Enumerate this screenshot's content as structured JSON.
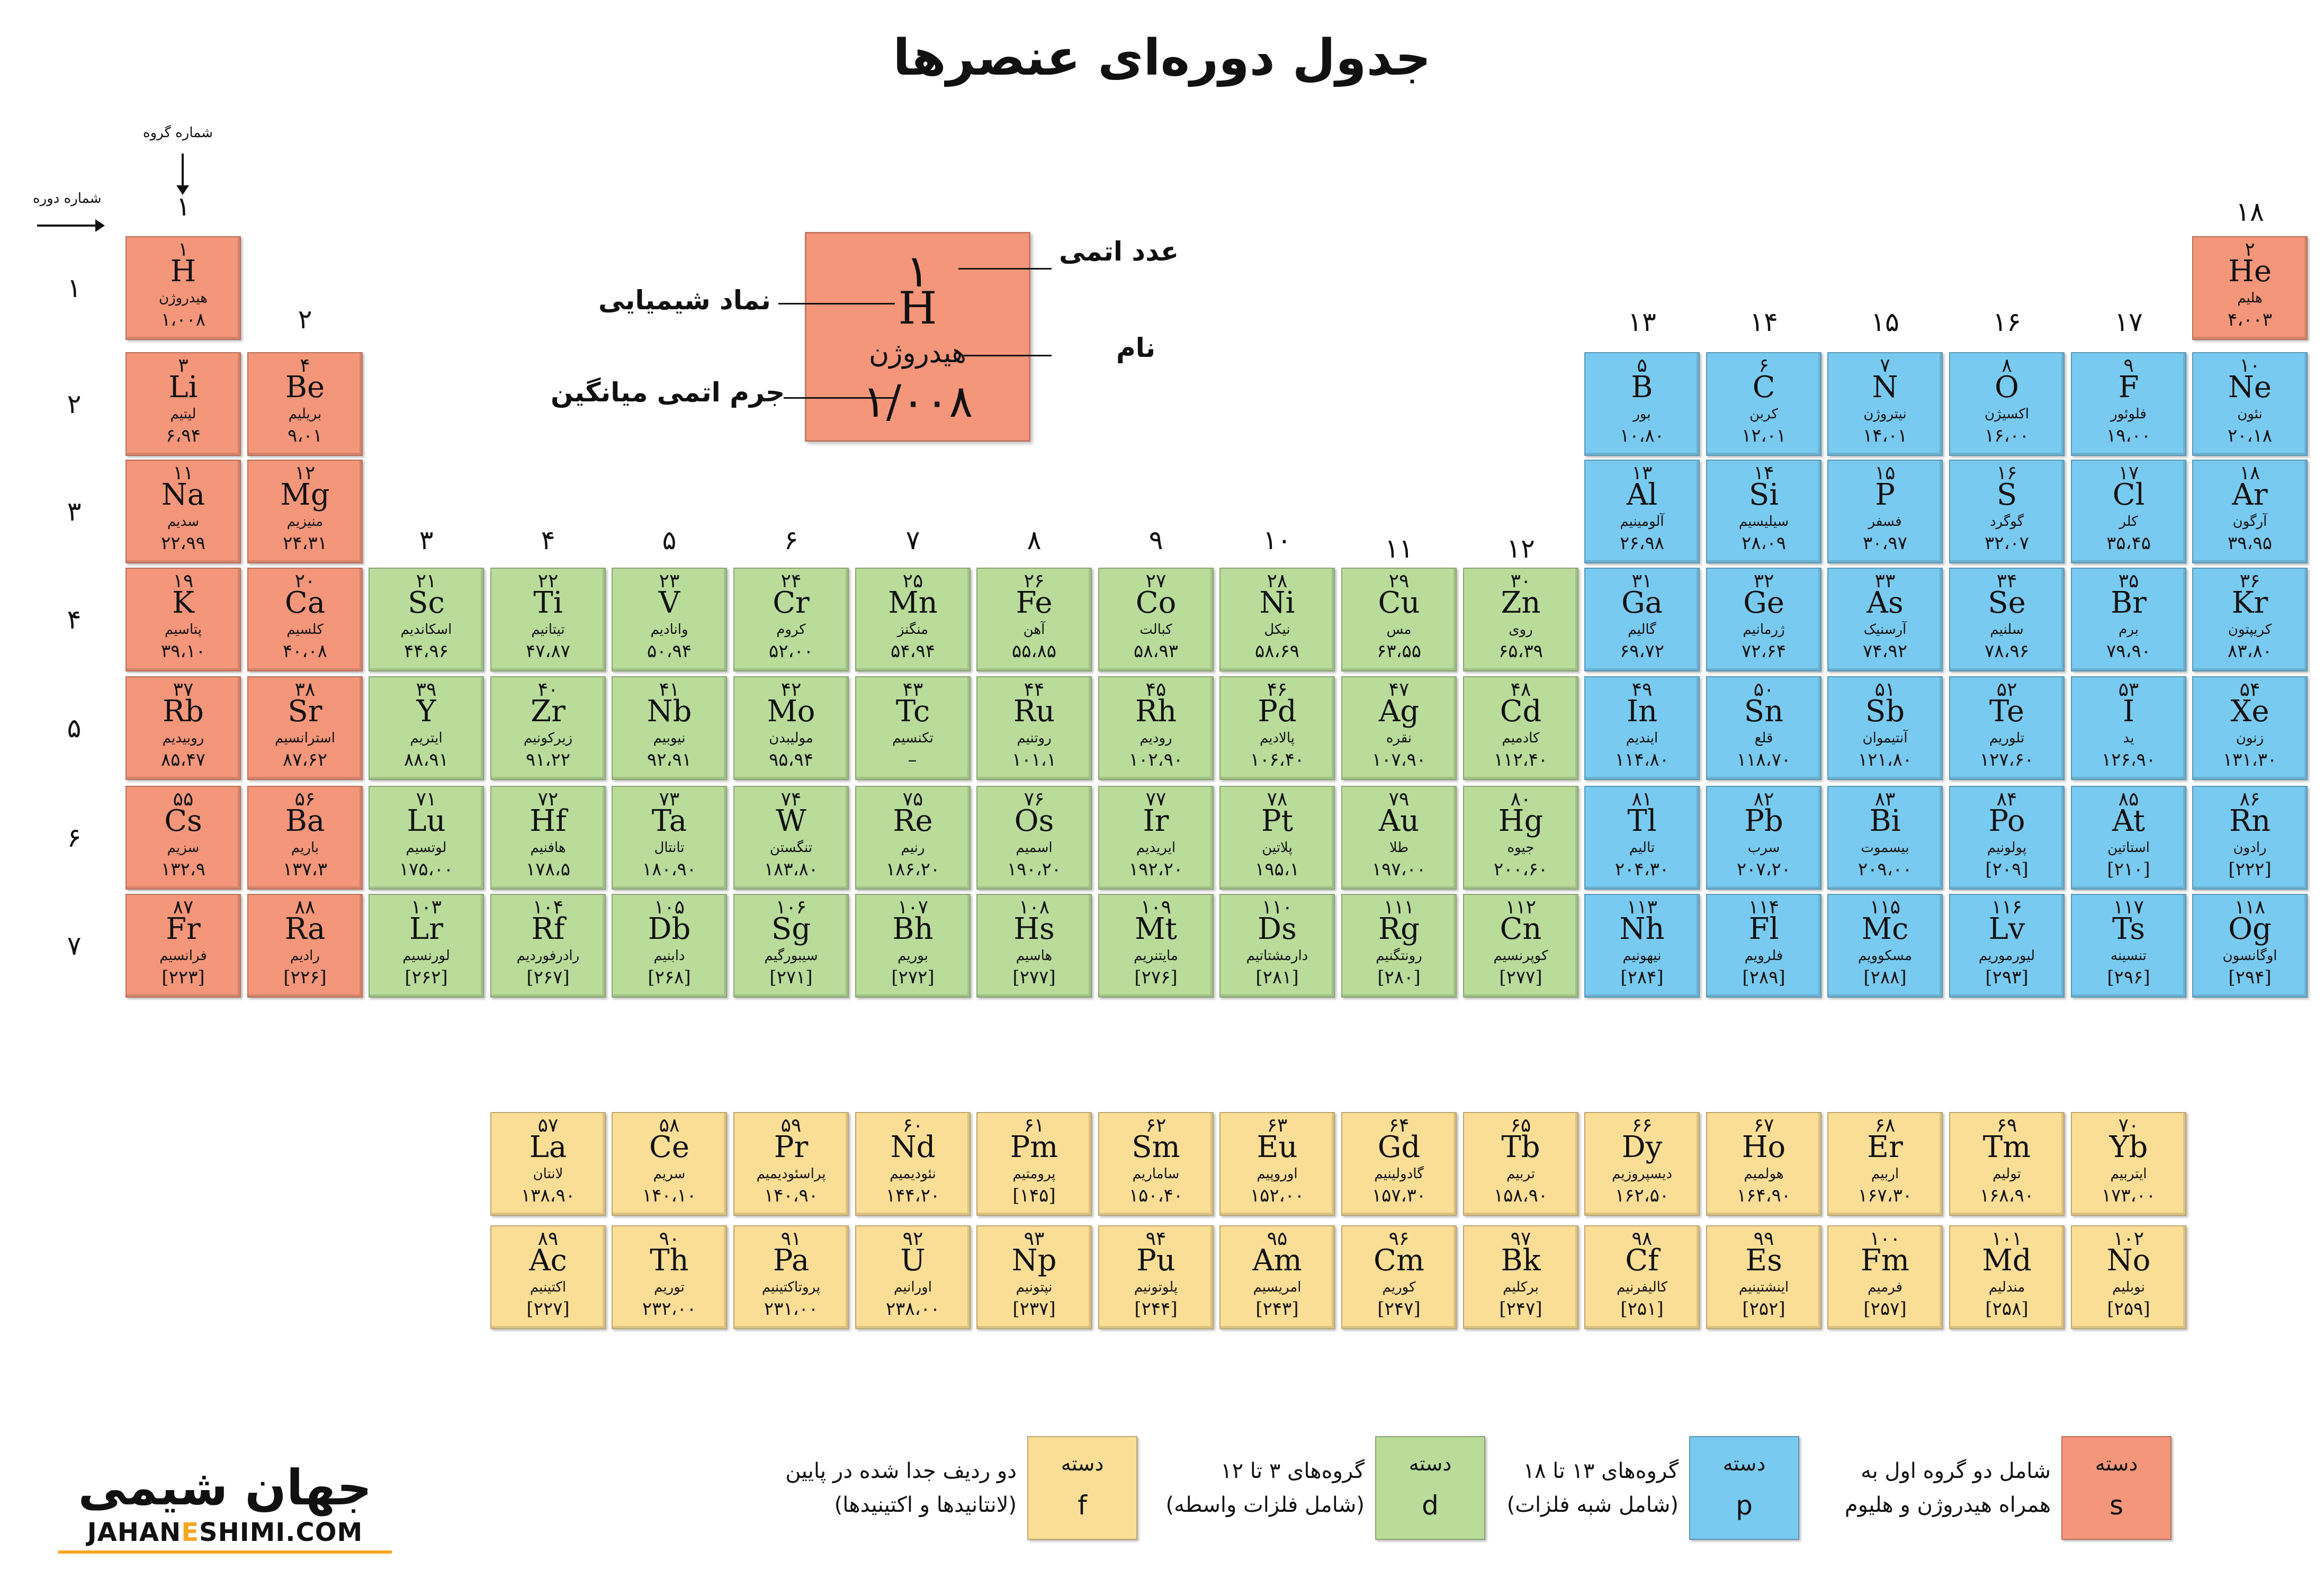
{
  "title": "جدول دوره‌ای عنصرها",
  "axis_labels": {
    "group": "شماره گروه",
    "period": "شماره دوره"
  },
  "group_numbers": [
    "۱",
    "۲",
    "۳",
    "۴",
    "۵",
    "۶",
    "۷",
    "۸",
    "۹",
    "۱۰",
    "۱۱",
    "۱۲",
    "۱۳",
    "۱۴",
    "۱۵",
    "۱۶",
    "۱۷",
    "۱۸"
  ],
  "period_numbers": [
    "۱",
    "۲",
    "۳",
    "۴",
    "۵",
    "۶",
    "۷"
  ],
  "sample": {
    "number": "۱",
    "symbol": "H",
    "name": "هیدروژن",
    "mass": "۱/۰۰۸",
    "labels": {
      "number": "عدد اتمی",
      "symbol": "نماد شیمیایی",
      "name": "نام",
      "mass": "جرم اتمی میانگین"
    }
  },
  "elements": [
    {
      "n": "۱",
      "s": "H",
      "nm": "هیدروژن",
      "m": "۱،۰۰۸",
      "b": "s",
      "c": 1,
      "r": 1
    },
    {
      "n": "۲",
      "s": "He",
      "nm": "هلیم",
      "m": "۴،۰۰۳",
      "b": "s",
      "c": 18,
      "r": 1
    },
    {
      "n": "۳",
      "s": "Li",
      "nm": "لیتیم",
      "m": "۶،۹۴",
      "b": "s",
      "c": 1,
      "r": 2
    },
    {
      "n": "۴",
      "s": "Be",
      "nm": "بریلیم",
      "m": "۹،۰۱",
      "b": "s",
      "c": 2,
      "r": 2
    },
    {
      "n": "۵",
      "s": "B",
      "nm": "بور",
      "m": "۱۰،۸۰",
      "b": "p",
      "c": 13,
      "r": 2
    },
    {
      "n": "۶",
      "s": "C",
      "nm": "کربن",
      "m": "۱۲،۰۱",
      "b": "p",
      "c": 14,
      "r": 2
    },
    {
      "n": "۷",
      "s": "N",
      "nm": "نیتروژن",
      "m": "۱۴،۰۱",
      "b": "p",
      "c": 15,
      "r": 2
    },
    {
      "n": "۸",
      "s": "O",
      "nm": "اکسیژن",
      "m": "۱۶،۰۰",
      "b": "p",
      "c": 16,
      "r": 2
    },
    {
      "n": "۹",
      "s": "F",
      "nm": "فلوئور",
      "m": "۱۹،۰۰",
      "b": "p",
      "c": 17,
      "r": 2
    },
    {
      "n": "۱۰",
      "s": "Ne",
      "nm": "نئون",
      "m": "۲۰،۱۸",
      "b": "p",
      "c": 18,
      "r": 2
    },
    {
      "n": "۱۱",
      "s": "Na",
      "nm": "سدیم",
      "m": "۲۲،۹۹",
      "b": "s",
      "c": 1,
      "r": 3
    },
    {
      "n": "۱۲",
      "s": "Mg",
      "nm": "منیزیم",
      "m": "۲۴،۳۱",
      "b": "s",
      "c": 2,
      "r": 3
    },
    {
      "n": "۱۳",
      "s": "Al",
      "nm": "آلومینیم",
      "m": "۲۶،۹۸",
      "b": "p",
      "c": 13,
      "r": 3
    },
    {
      "n": "۱۴",
      "s": "Si",
      "nm": "سیلیسیم",
      "m": "۲۸،۰۹",
      "b": "p",
      "c": 14,
      "r": 3
    },
    {
      "n": "۱۵",
      "s": "P",
      "nm": "فسفر",
      "m": "۳۰،۹۷",
      "b": "p",
      "c": 15,
      "r": 3
    },
    {
      "n": "۱۶",
      "s": "S",
      "nm": "گوگرد",
      "m": "۳۲،۰۷",
      "b": "p",
      "c": 16,
      "r": 3
    },
    {
      "n": "۱۷",
      "s": "Cl",
      "nm": "کلر",
      "m": "۳۵،۴۵",
      "b": "p",
      "c": 17,
      "r": 3
    },
    {
      "n": "۱۸",
      "s": "Ar",
      "nm": "آرگون",
      "m": "۳۹،۹۵",
      "b": "p",
      "c": 18,
      "r": 3
    },
    {
      "n": "۱۹",
      "s": "K",
      "nm": "پتاسیم",
      "m": "۳۹،۱۰",
      "b": "s",
      "c": 1,
      "r": 4
    },
    {
      "n": "۲۰",
      "s": "Ca",
      "nm": "کلسیم",
      "m": "۴۰،۰۸",
      "b": "s",
      "c": 2,
      "r": 4
    },
    {
      "n": "۲۱",
      "s": "Sc",
      "nm": "اسکاندیم",
      "m": "۴۴،۹۶",
      "b": "d",
      "c": 3,
      "r": 4
    },
    {
      "n": "۲۲",
      "s": "Ti",
      "nm": "تیتانیم",
      "m": "۴۷،۸۷",
      "b": "d",
      "c": 4,
      "r": 4
    },
    {
      "n": "۲۳",
      "s": "V",
      "nm": "وانادیم",
      "m": "۵۰،۹۴",
      "b": "d",
      "c": 5,
      "r": 4
    },
    {
      "n": "۲۴",
      "s": "Cr",
      "nm": "کروم",
      "m": "۵۲،۰۰",
      "b": "d",
      "c": 6,
      "r": 4
    },
    {
      "n": "۲۵",
      "s": "Mn",
      "nm": "منگنز",
      "m": "۵۴،۹۴",
      "b": "d",
      "c": 7,
      "r": 4
    },
    {
      "n": "۲۶",
      "s": "Fe",
      "nm": "آهن",
      "m": "۵۵،۸۵",
      "b": "d",
      "c": 8,
      "r": 4
    },
    {
      "n": "۲۷",
      "s": "Co",
      "nm": "کبالت",
      "m": "۵۸،۹۳",
      "b": "d",
      "c": 9,
      "r": 4
    },
    {
      "n": "۲۸",
      "s": "Ni",
      "nm": "نیکل",
      "m": "۵۸،۶۹",
      "b": "d",
      "c": 10,
      "r": 4
    },
    {
      "n": "۲۹",
      "s": "Cu",
      "nm": "مس",
      "m": "۶۳،۵۵",
      "b": "d",
      "c": 11,
      "r": 4
    },
    {
      "n": "۳۰",
      "s": "Zn",
      "nm": "روی",
      "m": "۶۵،۳۹",
      "b": "d",
      "c": 12,
      "r": 4
    },
    {
      "n": "۳۱",
      "s": "Ga",
      "nm": "گالیم",
      "m": "۶۹،۷۲",
      "b": "p",
      "c": 13,
      "r": 4
    },
    {
      "n": "۳۲",
      "s": "Ge",
      "nm": "ژرمانیم",
      "m": "۷۲،۶۴",
      "b": "p",
      "c": 14,
      "r": 4
    },
    {
      "n": "۳۳",
      "s": "As",
      "nm": "آرسنیک",
      "m": "۷۴،۹۲",
      "b": "p",
      "c": 15,
      "r": 4
    },
    {
      "n": "۳۴",
      "s": "Se",
      "nm": "سلنیم",
      "m": "۷۸،۹۶",
      "b": "p",
      "c": 16,
      "r": 4
    },
    {
      "n": "۳۵",
      "s": "Br",
      "nm": "برم",
      "m": "۷۹،۹۰",
      "b": "p",
      "c": 17,
      "r": 4
    },
    {
      "n": "۳۶",
      "s": "Kr",
      "nm": "کریپتون",
      "m": "۸۳،۸۰",
      "b": "p",
      "c": 18,
      "r": 4
    },
    {
      "n": "۳۷",
      "s": "Rb",
      "nm": "روبیدیم",
      "m": "۸۵،۴۷",
      "b": "s",
      "c": 1,
      "r": 5
    },
    {
      "n": "۳۸",
      "s": "Sr",
      "nm": "استرانسیم",
      "m": "۸۷،۶۲",
      "b": "s",
      "c": 2,
      "r": 5
    },
    {
      "n": "۳۹",
      "s": "Y",
      "nm": "ایتریم",
      "m": "۸۸،۹۱",
      "b": "d",
      "c": 3,
      "r": 5
    },
    {
      "n": "۴۰",
      "s": "Zr",
      "nm": "زیرکونیم",
      "m": "۹۱،۲۲",
      "b": "d",
      "c": 4,
      "r": 5
    },
    {
      "n": "۴۱",
      "s": "Nb",
      "nm": "نیوبیم",
      "m": "۹۲،۹۱",
      "b": "d",
      "c": 5,
      "r": 5
    },
    {
      "n": "۴۲",
      "s": "Mo",
      "nm": "مولیبدن",
      "m": "۹۵،۹۴",
      "b": "d",
      "c": 6,
      "r": 5
    },
    {
      "n": "۴۳",
      "s": "Tc",
      "nm": "تکنسیم",
      "m": "–",
      "b": "d",
      "c": 7,
      "r": 5
    },
    {
      "n": "۴۴",
      "s": "Ru",
      "nm": "روتنیم",
      "m": "۱۰۱،۱",
      "b": "d",
      "c": 8,
      "r": 5
    },
    {
      "n": "۴۵",
      "s": "Rh",
      "nm": "رودیم",
      "m": "۱۰۲،۹۰",
      "b": "d",
      "c": 9,
      "r": 5
    },
    {
      "n": "۴۶",
      "s": "Pd",
      "nm": "پالادیم",
      "m": "۱۰۶،۴۰",
      "b": "d",
      "c": 10,
      "r": 5
    },
    {
      "n": "۴۷",
      "s": "Ag",
      "nm": "نقره",
      "m": "۱۰۷،۹۰",
      "b": "d",
      "c": 11,
      "r": 5
    },
    {
      "n": "۴۸",
      "s": "Cd",
      "nm": "کادمیم",
      "m": "۱۱۲،۴۰",
      "b": "d",
      "c": 12,
      "r": 5
    },
    {
      "n": "۴۹",
      "s": "In",
      "nm": "ایندیم",
      "m": "۱۱۴،۸۰",
      "b": "p",
      "c": 13,
      "r": 5
    },
    {
      "n": "۵۰",
      "s": "Sn",
      "nm": "قلع",
      "m": "۱۱۸،۷۰",
      "b": "p",
      "c": 14,
      "r": 5
    },
    {
      "n": "۵۱",
      "s": "Sb",
      "nm": "آنتیموان",
      "m": "۱۲۱،۸۰",
      "b": "p",
      "c": 15,
      "r": 5
    },
    {
      "n": "۵۲",
      "s": "Te",
      "nm": "تلوریم",
      "m": "۱۲۷،۶۰",
      "b": "p",
      "c": 16,
      "r": 5
    },
    {
      "n": "۵۳",
      "s": "I",
      "nm": "ید",
      "m": "۱۲۶،۹۰",
      "b": "p",
      "c": 17,
      "r": 5
    },
    {
      "n": "۵۴",
      "s": "Xe",
      "nm": "زنون",
      "m": "۱۳۱،۳۰",
      "b": "p",
      "c": 18,
      "r": 5
    },
    {
      "n": "۵۵",
      "s": "Cs",
      "nm": "سزیم",
      "m": "۱۳۲،۹",
      "b": "s",
      "c": 1,
      "r": 6
    },
    {
      "n": "۵۶",
      "s": "Ba",
      "nm": "باریم",
      "m": "۱۳۷،۳",
      "b": "s",
      "c": 2,
      "r": 6
    },
    {
      "n": "۷۱",
      "s": "Lu",
      "nm": "لوتسیم",
      "m": "۱۷۵،۰۰",
      "b": "d",
      "c": 3,
      "r": 6
    },
    {
      "n": "۷۲",
      "s": "Hf",
      "nm": "هافنیم",
      "m": "۱۷۸،۵",
      "b": "d",
      "c": 4,
      "r": 6
    },
    {
      "n": "۷۳",
      "s": "Ta",
      "nm": "تانتال",
      "m": "۱۸۰،۹۰",
      "b": "d",
      "c": 5,
      "r": 6
    },
    {
      "n": "۷۴",
      "s": "W",
      "nm": "تنگستن",
      "m": "۱۸۳،۸۰",
      "b": "d",
      "c": 6,
      "r": 6
    },
    {
      "n": "۷۵",
      "s": "Re",
      "nm": "رنیم",
      "m": "۱۸۶،۲۰",
      "b": "d",
      "c": 7,
      "r": 6
    },
    {
      "n": "۷۶",
      "s": "Os",
      "nm": "اسمیم",
      "m": "۱۹۰،۲۰",
      "b": "d",
      "c": 8,
      "r": 6
    },
    {
      "n": "۷۷",
      "s": "Ir",
      "nm": "ایریدیم",
      "m": "۱۹۲،۲۰",
      "b": "d",
      "c": 9,
      "r": 6
    },
    {
      "n": "۷۸",
      "s": "Pt",
      "nm": "پلاتین",
      "m": "۱۹۵،۱",
      "b": "d",
      "c": 10,
      "r": 6
    },
    {
      "n": "۷۹",
      "s": "Au",
      "nm": "طلا",
      "m": "۱۹۷،۰۰",
      "b": "d",
      "c": 11,
      "r": 6
    },
    {
      "n": "۸۰",
      "s": "Hg",
      "nm": "جیوه",
      "m": "۲۰۰،۶۰",
      "b": "d",
      "c": 12,
      "r": 6
    },
    {
      "n": "۸۱",
      "s": "Tl",
      "nm": "تالیم",
      "m": "۲۰۴،۳۰",
      "b": "p",
      "c": 13,
      "r": 6
    },
    {
      "n": "۸۲",
      "s": "Pb",
      "nm": "سرب",
      "m": "۲۰۷،۲۰",
      "b": "p",
      "c": 14,
      "r": 6
    },
    {
      "n": "۸۳",
      "s": "Bi",
      "nm": "بیسموت",
      "m": "۲۰۹،۰۰",
      "b": "p",
      "c": 15,
      "r": 6
    },
    {
      "n": "۸۴",
      "s": "Po",
      "nm": "پولونیم",
      "m": "[۲۰۹]",
      "b": "p",
      "c": 16,
      "r": 6
    },
    {
      "n": "۸۵",
      "s": "At",
      "nm": "استاتین",
      "m": "[۲۱۰]",
      "b": "p",
      "c": 17,
      "r": 6
    },
    {
      "n": "۸۶",
      "s": "Rn",
      "nm": "رادون",
      "m": "[۲۲۲]",
      "b": "p",
      "c": 18,
      "r": 6
    },
    {
      "n": "۸۷",
      "s": "Fr",
      "nm": "فرانسیم",
      "m": "[۲۲۳]",
      "b": "s",
      "c": 1,
      "r": 7
    },
    {
      "n": "۸۸",
      "s": "Ra",
      "nm": "رادیم",
      "m": "[۲۲۶]",
      "b": "s",
      "c": 2,
      "r": 7
    },
    {
      "n": "۱۰۳",
      "s": "Lr",
      "nm": "لورنسیم",
      "m": "[۲۶۲]",
      "b": "d",
      "c": 3,
      "r": 7
    },
    {
      "n": "۱۰۴",
      "s": "Rf",
      "nm": "رادرفوردیم",
      "m": "[۲۶۷]",
      "b": "d",
      "c": 4,
      "r": 7
    },
    {
      "n": "۱۰۵",
      "s": "Db",
      "nm": "دابنیم",
      "m": "[۲۶۸]",
      "b": "d",
      "c": 5,
      "r": 7
    },
    {
      "n": "۱۰۶",
      "s": "Sg",
      "nm": "سیبورگیم",
      "m": "[۲۷۱]",
      "b": "d",
      "c": 6,
      "r": 7
    },
    {
      "n": "۱۰۷",
      "s": "Bh",
      "nm": "بوریم",
      "m": "[۲۷۲]",
      "b": "d",
      "c": 7,
      "r": 7
    },
    {
      "n": "۱۰۸",
      "s": "Hs",
      "nm": "هاسیم",
      "m": "[۲۷۷]",
      "b": "d",
      "c": 8,
      "r": 7
    },
    {
      "n": "۱۰۹",
      "s": "Mt",
      "nm": "مایتنریم",
      "m": "[۲۷۶]",
      "b": "d",
      "c": 9,
      "r": 7
    },
    {
      "n": "۱۱۰",
      "s": "Ds",
      "nm": "دارمشتاتیم",
      "m": "[۲۸۱]",
      "b": "d",
      "c": 10,
      "r": 7
    },
    {
      "n": "۱۱۱",
      "s": "Rg",
      "nm": "رونتگنیم",
      "m": "[۲۸۰]",
      "b": "d",
      "c": 11,
      "r": 7
    },
    {
      "n": "۱۱۲",
      "s": "Cn",
      "nm": "کوپرنسیم",
      "m": "[۲۷۷]",
      "b": "d",
      "c": 12,
      "r": 7
    },
    {
      "n": "۱۱۳",
      "s": "Nh",
      "nm": "نیهونیم",
      "m": "[۲۸۴]",
      "b": "p",
      "c": 13,
      "r": 7
    },
    {
      "n": "۱۱۴",
      "s": "Fl",
      "nm": "فلرویم",
      "m": "[۲۸۹]",
      "b": "p",
      "c": 14,
      "r": 7
    },
    {
      "n": "۱۱۵",
      "s": "Mc",
      "nm": "مسکوویم",
      "m": "[۲۸۸]",
      "b": "p",
      "c": 15,
      "r": 7
    },
    {
      "n": "۱۱۶",
      "s": "Lv",
      "nm": "لیورموریم",
      "m": "[۲۹۳]",
      "b": "p",
      "c": 16,
      "r": 7
    },
    {
      "n": "۱۱۷",
      "s": "Ts",
      "nm": "تنسینه",
      "m": "[۲۹۶]",
      "b": "p",
      "c": 17,
      "r": 7
    },
    {
      "n": "۱۱۸",
      "s": "Og",
      "nm": "اوگانسون",
      "m": "[۲۹۴]",
      "b": "p",
      "c": 18,
      "r": 7
    },
    {
      "n": "۵۷",
      "s": "La",
      "nm": "لانتان",
      "m": "۱۳۸،۹۰",
      "b": "f",
      "c": 4,
      "r": 8
    },
    {
      "n": "۵۸",
      "s": "Ce",
      "nm": "سریم",
      "m": "۱۴۰،۱۰",
      "b": "f",
      "c": 5,
      "r": 8
    },
    {
      "n": "۵۹",
      "s": "Pr",
      "nm": "پراسئودیمیم",
      "m": "۱۴۰،۹۰",
      "b": "f",
      "c": 6,
      "r": 8
    },
    {
      "n": "۶۰",
      "s": "Nd",
      "nm": "نئودیمیم",
      "m": "۱۴۴،۲۰",
      "b": "f",
      "c": 7,
      "r": 8
    },
    {
      "n": "۶۱",
      "s": "Pm",
      "nm": "پرومتیم",
      "m": "[۱۴۵]",
      "b": "f",
      "c": 8,
      "r": 8
    },
    {
      "n": "۶۲",
      "s": "Sm",
      "nm": "ساماریم",
      "m": "۱۵۰،۴۰",
      "b": "f",
      "c": 9,
      "r": 8
    },
    {
      "n": "۶۳",
      "s": "Eu",
      "nm": "اوروپیم",
      "m": "۱۵۲،۰۰",
      "b": "f",
      "c": 10,
      "r": 8
    },
    {
      "n": "۶۴",
      "s": "Gd",
      "nm": "گادولینیم",
      "m": "۱۵۷،۳۰",
      "b": "f",
      "c": 11,
      "r": 8
    },
    {
      "n": "۶۵",
      "s": "Tb",
      "nm": "تربیم",
      "m": "۱۵۸،۹۰",
      "b": "f",
      "c": 12,
      "r": 8
    },
    {
      "n": "۶۶",
      "s": "Dy",
      "nm": "دیسپروزیم",
      "m": "۱۶۲،۵۰",
      "b": "f",
      "c": 13,
      "r": 8
    },
    {
      "n": "۶۷",
      "s": "Ho",
      "nm": "هولمیم",
      "m": "۱۶۴،۹۰",
      "b": "f",
      "c": 14,
      "r": 8
    },
    {
      "n": "۶۸",
      "s": "Er",
      "nm": "اربیم",
      "m": "۱۶۷،۳۰",
      "b": "f",
      "c": 15,
      "r": 8
    },
    {
      "n": "۶۹",
      "s": "Tm",
      "nm": "تولیم",
      "m": "۱۶۸،۹۰",
      "b": "f",
      "c": 16,
      "r": 8
    },
    {
      "n": "۷۰",
      "s": "Yb",
      "nm": "ایتربیم",
      "m": "۱۷۳،۰۰",
      "b": "f",
      "c": 17,
      "r": 8
    },
    {
      "n": "۸۹",
      "s": "Ac",
      "nm": "اکتینیم",
      "m": "[۲۲۷]",
      "b": "f",
      "c": 4,
      "r": 9
    },
    {
      "n": "۹۰",
      "s": "Th",
      "nm": "توریم",
      "m": "۲۳۲،۰۰",
      "b": "f",
      "c": 5,
      "r": 9
    },
    {
      "n": "۹۱",
      "s": "Pa",
      "nm": "پروتاکتینیم",
      "m": "۲۳۱،۰۰",
      "b": "f",
      "c": 6,
      "r": 9
    },
    {
      "n": "۹۲",
      "s": "U",
      "nm": "اورانیم",
      "m": "۲۳۸،۰۰",
      "b": "f",
      "c": 7,
      "r": 9
    },
    {
      "n": "۹۳",
      "s": "Np",
      "nm": "نپتونیم",
      "m": "[۲۳۷]",
      "b": "f",
      "c": 8,
      "r": 9
    },
    {
      "n": "۹۴",
      "s": "Pu",
      "nm": "پلوتونیم",
      "m": "[۲۴۴]",
      "b": "f",
      "c": 9,
      "r": 9
    },
    {
      "n": "۹۵",
      "s": "Am",
      "nm": "امریسیم",
      "m": "[۲۴۳]",
      "b": "f",
      "c": 10,
      "r": 9
    },
    {
      "n": "۹۶",
      "s": "Cm",
      "nm": "کوریم",
      "m": "[۲۴۷]",
      "b": "f",
      "c": 11,
      "r": 9
    },
    {
      "n": "۹۷",
      "s": "Bk",
      "nm": "برکلیم",
      "m": "[۲۴۷]",
      "b": "f",
      "c": 12,
      "r": 9
    },
    {
      "n": "۹۸",
      "s": "Cf",
      "nm": "کالیفرنیم",
      "m": "[۲۵۱]",
      "b": "f",
      "c": 13,
      "r": 9
    },
    {
      "n": "۹۹",
      "s": "Es",
      "nm": "اینشتینیم",
      "m": "[۲۵۲]",
      "b": "f",
      "c": 14,
      "r": 9
    },
    {
      "n": "۱۰۰",
      "s": "Fm",
      "nm": "فرمیم",
      "m": "[۲۵۷]",
      "b": "f",
      "c": 15,
      "r": 9
    },
    {
      "n": "۱۰۱",
      "s": "Md",
      "nm": "مندلیم",
      "m": "[۲۵۸]",
      "b": "f",
      "c": 16,
      "r": 9
    },
    {
      "n": "۱۰۲",
      "s": "No",
      "nm": "نوبلیم",
      "m": "[۲۵۹]",
      "b": "f",
      "c": 17,
      "r": 9
    }
  ],
  "legend": [
    {
      "block": "s",
      "word": "دسته",
      "letter": "s",
      "line1": "شامل دو گروه اول به",
      "line2": "همراه هیدروژن و هلیوم"
    },
    {
      "block": "p",
      "word": "دسته",
      "letter": "p",
      "line1": "گروه‌های ۱۳ تا ۱۸",
      "line2": "(شامل شبه فلزات)"
    },
    {
      "block": "d",
      "word": "دسته",
      "letter": "d",
      "line1": "گروه‌های ۳ تا ۱۲",
      "line2": "(شامل فلزات واسطه)"
    },
    {
      "block": "f",
      "word": "دسته",
      "letter": "f",
      "line1": "دو ردیف جدا شده در پایین",
      "line2": "(لانتانیدها و اکتینیدها)"
    }
  ],
  "colors": {
    "s": "#f4967a",
    "p": "#79caf0",
    "d": "#b9dc9a",
    "f": "#fbde95",
    "logo": "#f5a623"
  },
  "logo": {
    "fa": "جهان شیمی",
    "en_left": "JAHAN",
    "en_mid": "E",
    "en_right": "SHIMI.COM"
  }
}
